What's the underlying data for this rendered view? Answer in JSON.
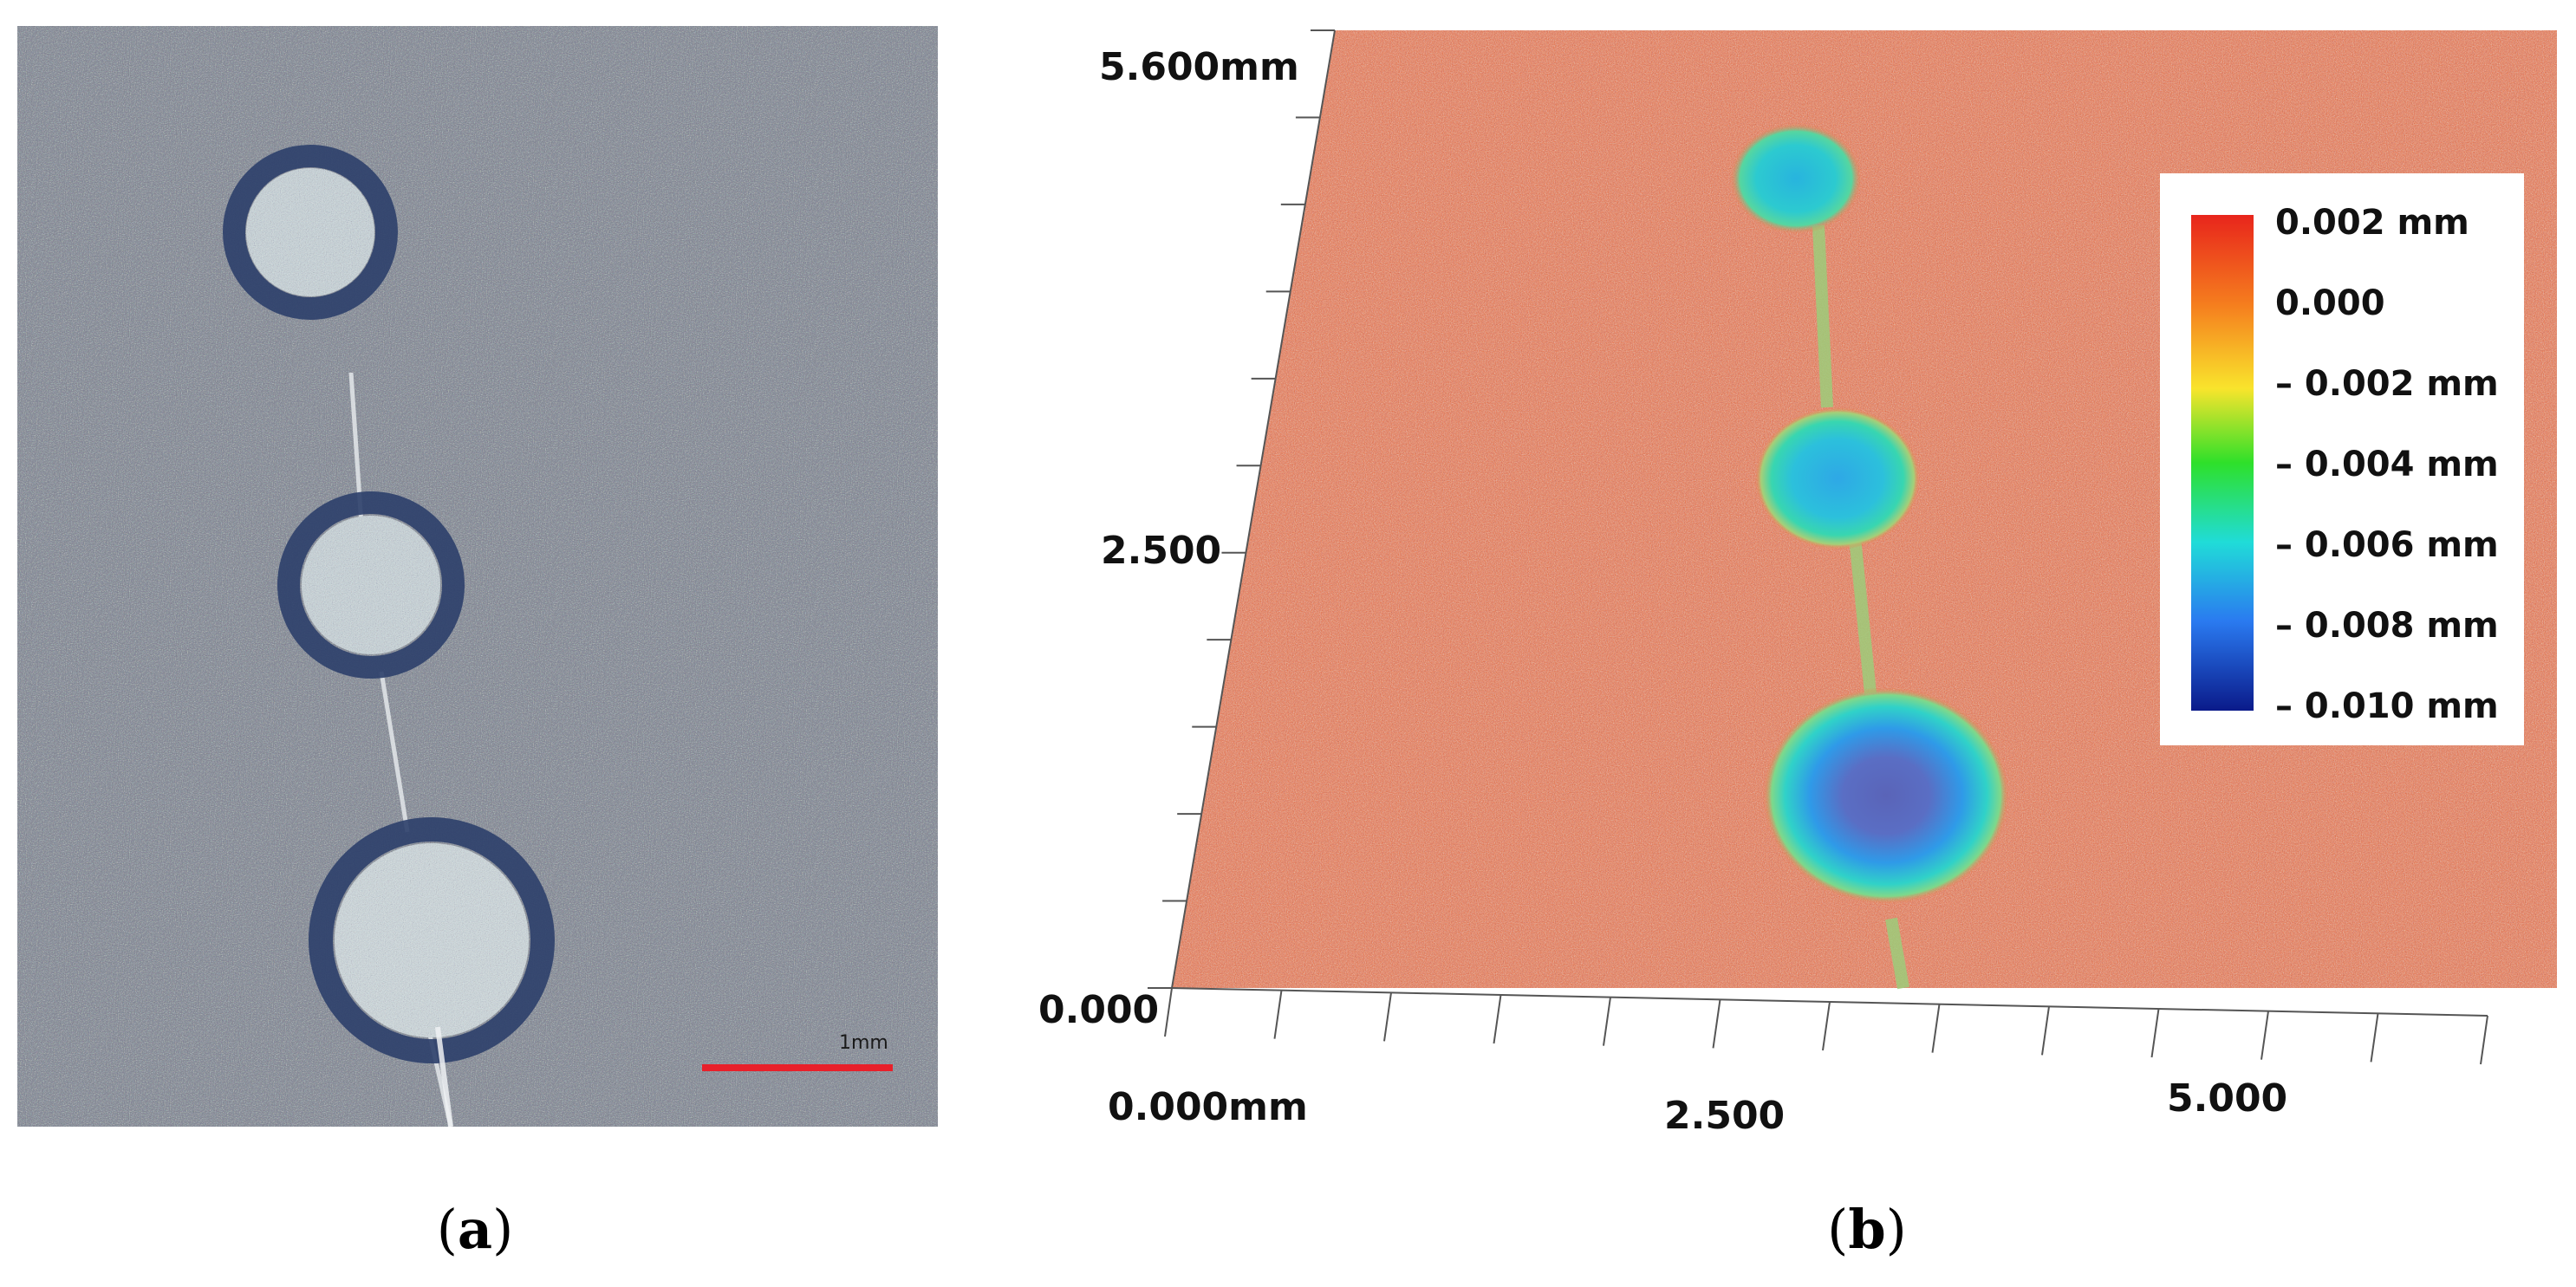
{
  "panels": {
    "a": {
      "label_open": "(",
      "label_letter": "a",
      "label_close": ")",
      "scale_bar_text": "1mm",
      "scale_bar_color": "#e8202a",
      "background_color": "#8a8f9a"
    },
    "b": {
      "label_open": "(",
      "label_letter": "b",
      "label_close": ")",
      "surface_color": "#f07a48",
      "y_tick_labels": [
        "5.600mm",
        "2.500",
        "0.000"
      ],
      "x_tick_labels": [
        "0.000mm",
        "2.500",
        "5.000"
      ],
      "colorbar": {
        "labels": [
          "0.002 mm",
          "0.000",
          "– 0.002 mm",
          "– 0.004 mm",
          "– 0.006 mm",
          "– 0.008 mm",
          "– 0.010 mm"
        ],
        "colors": [
          "#e8251c",
          "#f57d1e",
          "#f9e42c",
          "#2ee02a",
          "#20dcd8",
          "#2a7af0",
          "#0a1a8a"
        ]
      }
    }
  }
}
